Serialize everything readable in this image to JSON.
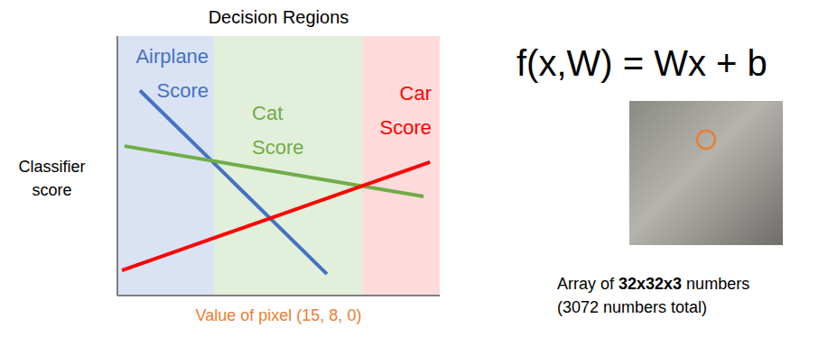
{
  "chart_data": {
    "type": "line",
    "title": "Decision Regions",
    "x_label": "Value of pixel (15, 8, 0)",
    "y_label": "Classifier score",
    "xlim": [
      0,
      10
    ],
    "ylim": [
      0,
      10
    ],
    "tick_labels": false,
    "series": [
      {
        "name": "Airplane Score",
        "color": "#4472c4",
        "x": [
          0.7,
          6.5
        ],
        "values": [
          7.9,
          0.83
        ],
        "region": [
          0,
          3.0
        ]
      },
      {
        "name": "Cat Score",
        "color": "#70ad47",
        "x": [
          0.22,
          9.5
        ],
        "values": [
          5.76,
          3.82
        ],
        "region": [
          3.0,
          7.6
        ]
      },
      {
        "name": "Car Score",
        "color": "#ff0000",
        "x": [
          0.14,
          9.7
        ],
        "values": [
          0.97,
          5.14
        ],
        "region": [
          7.6,
          10
        ]
      }
    ]
  },
  "formula": "f(x,W) = Wx + b",
  "caption": {
    "line1": "Array of 32x32x3 numbers",
    "bold": "32x32x3",
    "line2": "(3072 numbers total)"
  }
}
